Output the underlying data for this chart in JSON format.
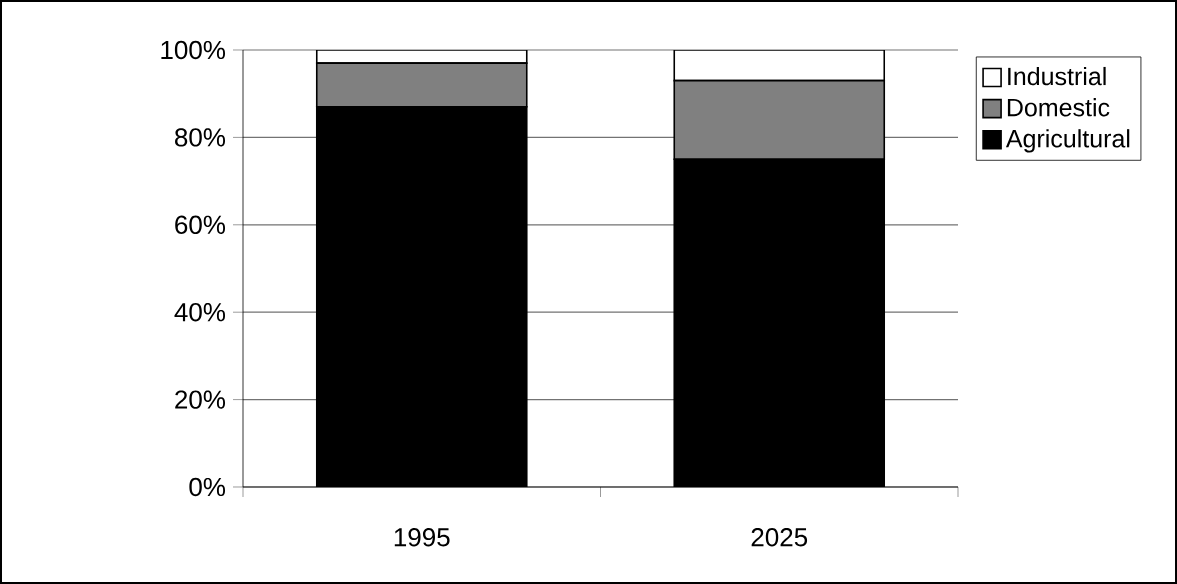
{
  "chart_data": {
    "type": "bar",
    "stacked": true,
    "categories": [
      "1995",
      "2025"
    ],
    "series": [
      {
        "name": "Agricultural",
        "color": "#000000",
        "values": [
          87,
          75
        ]
      },
      {
        "name": "Domestic",
        "color": "#808080",
        "values": [
          10,
          18
        ]
      },
      {
        "name": "Industrial",
        "color": "#ffffff",
        "values": [
          3,
          7
        ]
      }
    ],
    "ylim": [
      0,
      100
    ],
    "yticks": [
      {
        "value": 0,
        "label": "0%"
      },
      {
        "value": 20,
        "label": "20%"
      },
      {
        "value": 40,
        "label": "40%"
      },
      {
        "value": 60,
        "label": "60%"
      },
      {
        "value": 80,
        "label": "80%"
      },
      {
        "value": 100,
        "label": "100%"
      }
    ],
    "grid": "y",
    "legend": "right"
  }
}
